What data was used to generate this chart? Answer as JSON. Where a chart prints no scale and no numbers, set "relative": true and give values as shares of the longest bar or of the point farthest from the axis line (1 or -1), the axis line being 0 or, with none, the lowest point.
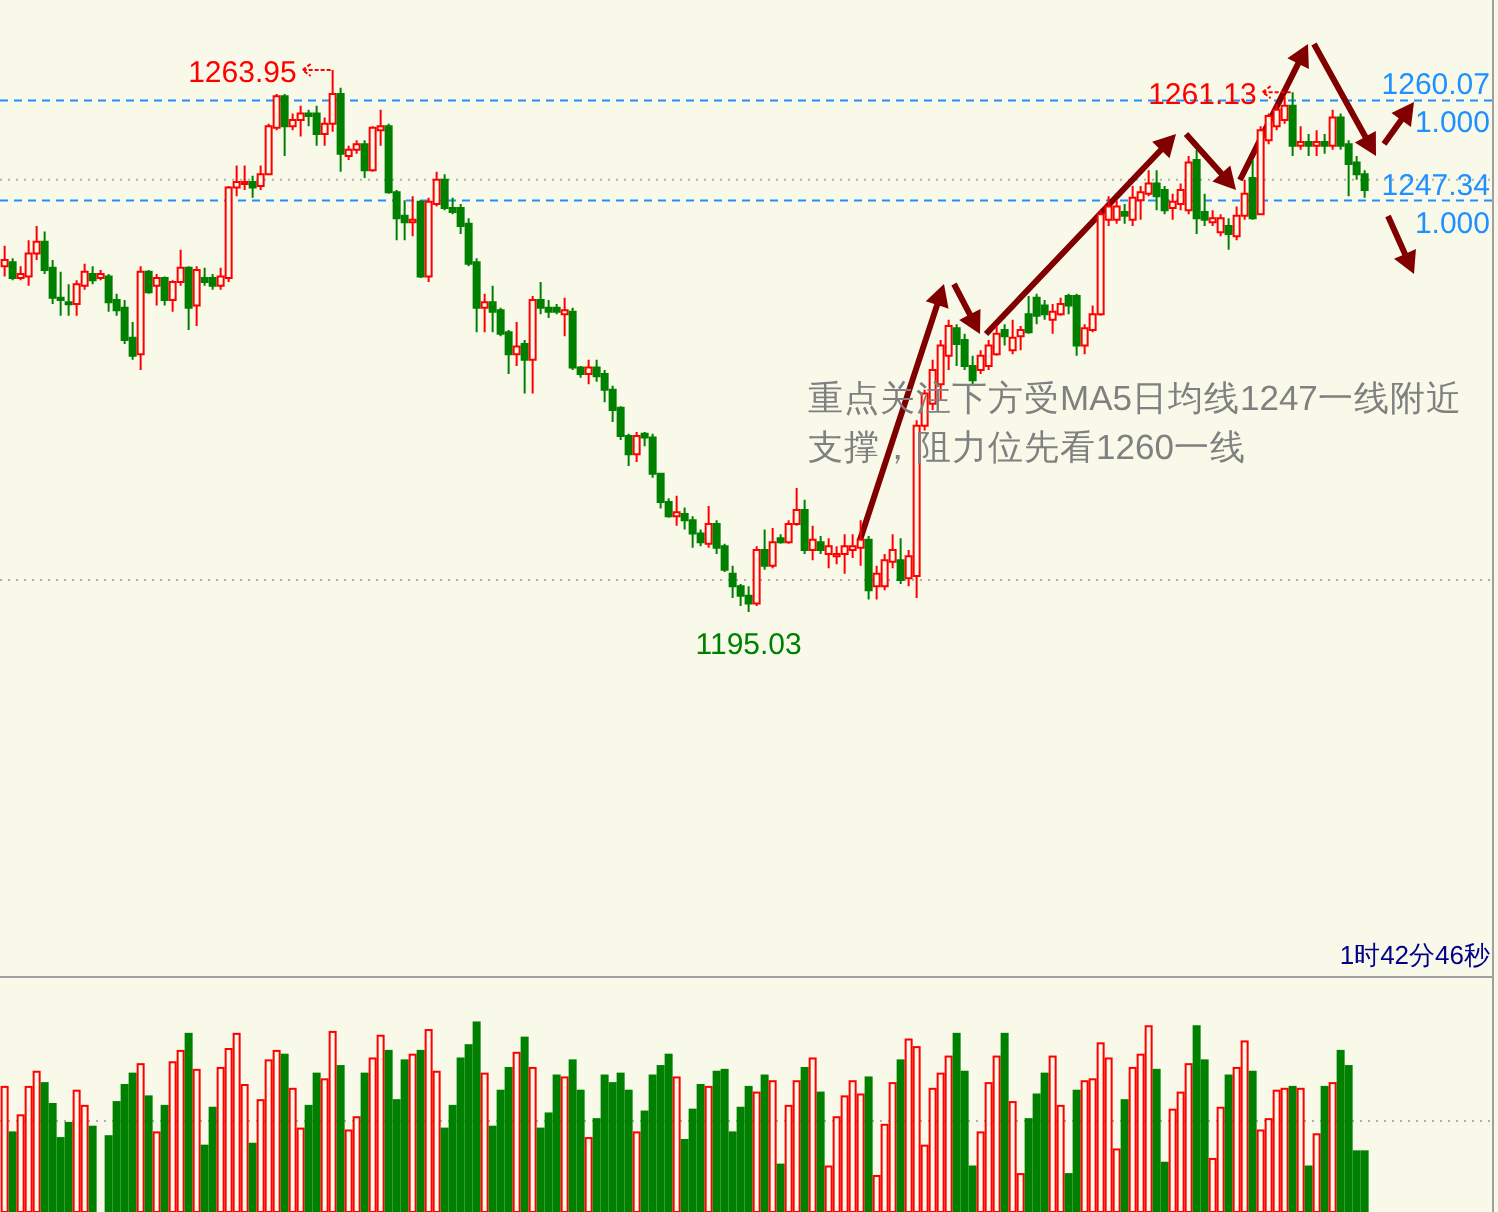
{
  "chart_data": [
    {
      "type": "candlestick",
      "categories": [
        null,
        null,
        null,
        null,
        null,
        null,
        null,
        null,
        null,
        null,
        null,
        null,
        null,
        null,
        null,
        null,
        null,
        null,
        null,
        null,
        null,
        null,
        null,
        null,
        null,
        null,
        null,
        null,
        null,
        null,
        null,
        null,
        null,
        null,
        null,
        null,
        null,
        null,
        null,
        null,
        null,
        null,
        null,
        null,
        null,
        null,
        null,
        null,
        null,
        null,
        null,
        null,
        null,
        null,
        null,
        null,
        null,
        null,
        null,
        null,
        null,
        null,
        null,
        null,
        null,
        null,
        null,
        null,
        null,
        null,
        null,
        null,
        null,
        null,
        null,
        null,
        null,
        null,
        null,
        null,
        null,
        null,
        null,
        null,
        null,
        null,
        null,
        null,
        null,
        null,
        null,
        null,
        null,
        null,
        null,
        null,
        null,
        null,
        null,
        null,
        null,
        null,
        null,
        null,
        null,
        null,
        null,
        null,
        null,
        null,
        null,
        null,
        null,
        null,
        null,
        null,
        null,
        null,
        null,
        null,
        null,
        null,
        null,
        null,
        null,
        null,
        null,
        null,
        null,
        null,
        null,
        null,
        null,
        null,
        null,
        null,
        null,
        null,
        null,
        null,
        null,
        null,
        null,
        null,
        null,
        null,
        null,
        null,
        null,
        null,
        null,
        null,
        null,
        null,
        null,
        null,
        null,
        null,
        null,
        null,
        null,
        null,
        null,
        null,
        null,
        null,
        null,
        null,
        null,
        null,
        null
      ],
      "ohlc": [
        [
          1239.0,
          1241.6,
          1237.7,
          1239.8
        ],
        [
          1239.5,
          1240.0,
          1237.2,
          1237.5
        ],
        [
          1237.5,
          1239.0,
          1237.2,
          1238.0
        ],
        [
          1237.7,
          1242.3,
          1236.5,
          1240.6
        ],
        [
          1240.6,
          1244.1,
          1239.8,
          1242.1
        ],
        [
          1242.1,
          1243.4,
          1238.0,
          1238.5
        ],
        [
          1238.8,
          1239.8,
          1234.2,
          1235.0
        ],
        [
          1235.0,
          1238.3,
          1232.7,
          1234.7
        ],
        [
          1234.4,
          1236.7,
          1232.7,
          1234.2
        ],
        [
          1234.2,
          1237.2,
          1232.7,
          1236.7
        ],
        [
          1236.5,
          1239.3,
          1236.0,
          1238.3
        ],
        [
          1238.0,
          1239.0,
          1236.7,
          1237.2
        ],
        [
          1237.5,
          1238.5,
          1237.2,
          1238.0
        ],
        [
          1237.7,
          1238.0,
          1233.2,
          1234.4
        ],
        [
          1234.7,
          1235.5,
          1232.7,
          1233.4
        ],
        [
          1233.7,
          1234.7,
          1229.1,
          1229.6
        ],
        [
          1229.9,
          1231.9,
          1227.1,
          1227.6
        ],
        [
          1227.8,
          1239.0,
          1225.8,
          1238.3
        ],
        [
          1238.3,
          1238.5,
          1235.5,
          1235.7
        ],
        [
          1236.5,
          1238.0,
          1234.0,
          1237.5
        ],
        [
          1237.5,
          1237.7,
          1234.0,
          1234.7
        ],
        [
          1234.7,
          1237.2,
          1233.2,
          1237.0
        ],
        [
          1237.0,
          1241.1,
          1236.5,
          1238.8
        ],
        [
          1238.8,
          1239.0,
          1230.9,
          1233.7
        ],
        [
          1234.0,
          1239.0,
          1231.4,
          1238.5
        ],
        [
          1237.5,
          1238.8,
          1236.5,
          1237.0
        ],
        [
          1237.5,
          1238.0,
          1236.0,
          1236.5
        ],
        [
          1236.5,
          1238.8,
          1236.0,
          1237.7
        ],
        [
          1237.5,
          1249.2,
          1237.0,
          1249.0
        ],
        [
          1249.0,
          1251.8,
          1247.9,
          1249.7
        ],
        [
          1249.5,
          1251.8,
          1248.7,
          1249.7
        ],
        [
          1249.7,
          1250.5,
          1247.7,
          1249.0
        ],
        [
          1249.2,
          1251.8,
          1248.7,
          1250.7
        ],
        [
          1250.7,
          1257.1,
          1250.7,
          1256.8
        ],
        [
          1256.6,
          1260.9,
          1256.3,
          1260.6
        ],
        [
          1260.6,
          1260.9,
          1253.0,
          1256.8
        ],
        [
          1256.8,
          1258.4,
          1256.3,
          1257.6
        ],
        [
          1257.6,
          1259.4,
          1255.5,
          1258.4
        ],
        [
          1258.4,
          1258.9,
          1256.8,
          1258.1
        ],
        [
          1258.4,
          1259.4,
          1254.3,
          1255.8
        ],
        [
          1255.8,
          1257.9,
          1254.3,
          1257.1
        ],
        [
          1257.1,
          1263.95,
          1256.1,
          1260.9
        ],
        [
          1260.9,
          1261.7,
          1251.0,
          1253.3
        ],
        [
          1253.0,
          1254.3,
          1252.5,
          1253.8
        ],
        [
          1253.8,
          1255.0,
          1253.3,
          1254.5
        ],
        [
          1254.5,
          1255.0,
          1250.2,
          1251.2
        ],
        [
          1251.2,
          1256.8,
          1251.0,
          1256.6
        ],
        [
          1256.3,
          1258.9,
          1254.3,
          1256.8
        ],
        [
          1256.8,
          1257.1,
          1248.2,
          1248.4
        ],
        [
          1248.4,
          1248.7,
          1242.3,
          1245.1
        ],
        [
          1245.4,
          1247.4,
          1242.3,
          1244.6
        ],
        [
          1244.6,
          1247.9,
          1242.8,
          1244.9
        ],
        [
          1247.2,
          1247.4,
          1237.5,
          1237.7
        ],
        [
          1237.7,
          1247.7,
          1237.0,
          1247.2
        ],
        [
          1246.9,
          1251.0,
          1246.6,
          1250.0
        ],
        [
          1250.0,
          1250.7,
          1246.1,
          1246.4
        ],
        [
          1246.4,
          1247.7,
          1245.6,
          1245.9
        ],
        [
          1246.4,
          1246.9,
          1243.1,
          1244.1
        ],
        [
          1244.4,
          1245.1,
          1239.0,
          1239.3
        ],
        [
          1239.5,
          1240.0,
          1230.6,
          1233.7
        ],
        [
          1233.7,
          1235.5,
          1230.6,
          1234.4
        ],
        [
          1234.4,
          1236.5,
          1230.6,
          1233.2
        ],
        [
          1233.4,
          1233.7,
          1230.1,
          1230.4
        ],
        [
          1230.6,
          1230.9,
          1225.3,
          1227.8
        ],
        [
          1227.8,
          1231.9,
          1226.3,
          1228.8
        ],
        [
          1229.1,
          1229.6,
          1222.8,
          1227.1
        ],
        [
          1227.1,
          1235.2,
          1222.8,
          1234.7
        ],
        [
          1234.7,
          1237.0,
          1232.9,
          1233.7
        ],
        [
          1233.7,
          1234.7,
          1232.4,
          1233.2
        ],
        [
          1233.7,
          1234.2,
          1232.9,
          1233.2
        ],
        [
          1232.9,
          1235.0,
          1230.1,
          1233.4
        ],
        [
          1233.2,
          1233.7,
          1225.8,
          1226.1
        ],
        [
          1226.1,
          1226.3,
          1224.8,
          1225.3
        ],
        [
          1225.3,
          1227.1,
          1224.0,
          1226.1
        ],
        [
          1226.1,
          1227.1,
          1224.3,
          1225.0
        ],
        [
          1225.3,
          1225.8,
          1221.7,
          1223.3
        ],
        [
          1223.3,
          1223.8,
          1219.2,
          1220.7
        ],
        [
          1221.0,
          1221.2,
          1216.9,
          1217.4
        ],
        [
          1217.4,
          1217.7,
          1213.6,
          1215.1
        ],
        [
          1215.1,
          1217.9,
          1214.1,
          1217.4
        ],
        [
          1217.7,
          1217.9,
          1216.1,
          1217.2
        ],
        [
          1217.2,
          1217.7,
          1212.1,
          1212.6
        ],
        [
          1212.6,
          1212.6,
          1208.2,
          1209.0
        ],
        [
          1209.0,
          1209.5,
          1207.0,
          1207.2
        ],
        [
          1207.2,
          1209.8,
          1206.0,
          1207.7
        ],
        [
          1207.5,
          1208.3,
          1205.5,
          1206.7
        ],
        [
          1206.7,
          1207.2,
          1203.2,
          1205.0
        ],
        [
          1205.0,
          1205.5,
          1203.4,
          1203.9
        ],
        [
          1203.7,
          1208.5,
          1203.2,
          1206.2
        ],
        [
          1206.2,
          1206.7,
          1202.4,
          1203.2
        ],
        [
          1203.4,
          1203.7,
          1200.1,
          1200.4
        ],
        [
          1199.9,
          1200.9,
          1196.8,
          1198.3
        ],
        [
          1198.3,
          1198.6,
          1195.8,
          1197.1
        ],
        [
          1197.1,
          1198.3,
          1195.03,
          1196.1
        ],
        [
          1196.1,
          1203.4,
          1195.8,
          1202.9
        ],
        [
          1202.9,
          1205.5,
          1200.4,
          1200.9
        ],
        [
          1200.9,
          1205.7,
          1200.6,
          1203.9
        ],
        [
          1204.4,
          1204.9,
          1203.7,
          1203.9
        ],
        [
          1203.9,
          1206.7,
          1203.7,
          1206.2
        ],
        [
          1206.2,
          1210.8,
          1206.0,
          1208.0
        ],
        [
          1208.0,
          1209.3,
          1202.4,
          1202.9
        ],
        [
          1202.9,
          1206.0,
          1201.6,
          1204.2
        ],
        [
          1203.9,
          1204.7,
          1202.4,
          1202.9
        ],
        [
          1202.4,
          1204.4,
          1200.6,
          1203.4
        ],
        [
          1202.1,
          1203.4,
          1201.1,
          1202.4
        ],
        [
          1202.4,
          1204.9,
          1199.9,
          1203.4
        ],
        [
          1202.9,
          1204.9,
          1201.9,
          1203.4
        ],
        [
          1203.2,
          1206.7,
          1200.9,
          1204.2
        ],
        [
          1204.2,
          1204.7,
          1196.6,
          1197.8
        ],
        [
          1198.3,
          1200.9,
          1196.6,
          1199.9
        ],
        [
          1198.3,
          1202.4,
          1197.8,
          1201.6
        ],
        [
          1201.4,
          1204.9,
          1200.6,
          1202.9
        ],
        [
          1201.6,
          1204.4,
          1198.6,
          1199.1
        ],
        [
          1199.3,
          1202.9,
          1198.3,
          1202.1
        ],
        [
          1199.6,
          1219.4,
          1196.8,
          1218.7
        ],
        [
          1218.7,
          1223.3,
          1218.1,
          1222.8
        ],
        [
          1221.5,
          1227.1,
          1220.7,
          1225.8
        ],
        [
          1224.0,
          1229.6,
          1222.0,
          1228.9
        ],
        [
          1227.6,
          1232.2,
          1225.8,
          1231.4
        ],
        [
          1231.1,
          1231.6,
          1226.3,
          1229.1
        ],
        [
          1229.6,
          1230.4,
          1225.8,
          1226.3
        ],
        [
          1226.3,
          1227.6,
          1224.0,
          1224.5
        ],
        [
          1225.8,
          1228.3,
          1225.3,
          1227.6
        ],
        [
          1226.3,
          1229.6,
          1225.8,
          1228.9
        ],
        [
          1227.8,
          1231.4,
          1227.6,
          1230.4
        ],
        [
          1230.9,
          1231.6,
          1228.9,
          1230.1
        ],
        [
          1228.3,
          1232.2,
          1227.8,
          1229.9
        ],
        [
          1230.1,
          1231.4,
          1228.3,
          1230.9
        ],
        [
          1232.9,
          1235.2,
          1230.4,
          1230.6
        ],
        [
          1235.0,
          1235.5,
          1231.6,
          1232.7
        ],
        [
          1234.0,
          1234.7,
          1232.2,
          1232.9
        ],
        [
          1232.2,
          1234.2,
          1230.4,
          1233.2
        ],
        [
          1232.9,
          1235.0,
          1232.7,
          1234.2
        ],
        [
          1235.2,
          1235.5,
          1232.9,
          1234.0
        ],
        [
          1235.2,
          1235.5,
          1227.6,
          1228.9
        ],
        [
          1228.9,
          1231.6,
          1227.8,
          1231.1
        ],
        [
          1230.9,
          1234.0,
          1230.6,
          1232.9
        ],
        [
          1232.9,
          1246.1,
          1232.7,
          1245.6
        ],
        [
          1244.9,
          1247.9,
          1244.1,
          1246.6
        ],
        [
          1244.9,
          1247.4,
          1244.4,
          1246.6
        ],
        [
          1245.9,
          1246.9,
          1244.4,
          1245.4
        ],
        [
          1244.9,
          1249.2,
          1244.1,
          1247.7
        ],
        [
          1247.4,
          1249.2,
          1244.9,
          1248.4
        ],
        [
          1248.2,
          1251.2,
          1247.9,
          1249.5
        ],
        [
          1249.5,
          1251.2,
          1246.1,
          1247.9
        ],
        [
          1248.7,
          1249.2,
          1245.6,
          1246.1
        ],
        [
          1246.4,
          1248.2,
          1244.9,
          1247.2
        ],
        [
          1246.9,
          1249.5,
          1246.1,
          1248.7
        ],
        [
          1246.1,
          1253.0,
          1245.6,
          1252.2
        ],
        [
          1252.5,
          1253.8,
          1243.1,
          1245.1
        ],
        [
          1245.9,
          1248.2,
          1244.1,
          1244.9
        ],
        [
          1244.6,
          1246.1,
          1244.1,
          1245.1
        ],
        [
          1243.3,
          1245.6,
          1242.8,
          1245.1
        ],
        [
          1244.1,
          1245.1,
          1241.1,
          1243.1
        ],
        [
          1242.8,
          1246.6,
          1242.3,
          1245.4
        ],
        [
          1245.4,
          1250.0,
          1244.9,
          1248.2
        ],
        [
          1250.2,
          1252.5,
          1244.9,
          1245.1
        ],
        [
          1245.6,
          1256.8,
          1245.6,
          1256.3
        ],
        [
          1255.0,
          1258.4,
          1254.5,
          1258.1
        ],
        [
          1256.8,
          1259.6,
          1256.3,
          1258.9
        ],
        [
          1257.6,
          1260.6,
          1257.1,
          1259.4
        ],
        [
          1259.4,
          1261.13,
          1253.0,
          1254.3
        ],
        [
          1254.3,
          1256.8,
          1253.8,
          1254.8
        ],
        [
          1254.8,
          1255.8,
          1253.0,
          1254.3
        ],
        [
          1254.3,
          1256.3,
          1253.0,
          1254.8
        ],
        [
          1254.8,
          1255.8,
          1253.3,
          1254.3
        ],
        [
          1254.3,
          1258.9,
          1253.8,
          1257.9
        ],
        [
          1257.9,
          1258.4,
          1253.8,
          1254.3
        ],
        [
          1254.5,
          1255.0,
          1247.9,
          1252.0
        ],
        [
          1252.2,
          1253.0,
          1250.0,
          1250.7
        ],
        [
          1250.7,
          1251.2,
          1247.7,
          1248.7
        ]
      ],
      "ref_lines": [
        {
          "axis": "y",
          "value": 1260.07,
          "label": "1260.07",
          "color": "#1e90ff",
          "line_style": "dashed"
        },
        {
          "axis": "y",
          "value": 1247.34,
          "label": "1247.34",
          "color": "#1e90ff",
          "line_style": "dashed"
        },
        {
          "axis": "y",
          "value": 1250.0,
          "color": "#b0b0b0",
          "line_style": "dotted"
        },
        {
          "axis": "y",
          "value": 1199.1,
          "color": "#b0b0b0",
          "line_style": "dotted"
        }
      ],
      "annotations": [
        "1263.95",
        "1261.13",
        "1195.03",
        "1.000",
        "1.000",
        "重点关注下方受MA5日均线1247一线附近支撑，阻力位先看1260一线",
        "1时42分46秒"
      ]
    },
    {
      "type": "bar",
      "relative": true,
      "categories": [
        null,
        null,
        null,
        null,
        null,
        null,
        null,
        null,
        null,
        null,
        null,
        null,
        null,
        null,
        null,
        null,
        null,
        null,
        null,
        null,
        null,
        null,
        null,
        null,
        null,
        null,
        null,
        null,
        null,
        null,
        null,
        null,
        null,
        null,
        null,
        null,
        null,
        null,
        null,
        null,
        null,
        null,
        null,
        null,
        null,
        null,
        null,
        null,
        null,
        null,
        null,
        null,
        null,
        null,
        null,
        null,
        null,
        null,
        null,
        null,
        null,
        null,
        null,
        null,
        null,
        null,
        null,
        null,
        null,
        null,
        null,
        null,
        null,
        null,
        null,
        null,
        null,
        null,
        null,
        null,
        null,
        null,
        null,
        null,
        null,
        null,
        null,
        null,
        null,
        null,
        null,
        null,
        null,
        null,
        null,
        null,
        null,
        null,
        null,
        null,
        null,
        null,
        null,
        null,
        null,
        null,
        null,
        null,
        null,
        null,
        null,
        null,
        null,
        null,
        null,
        null,
        null,
        null,
        null,
        null,
        null,
        null,
        null,
        null,
        null,
        null,
        null,
        null,
        null,
        null,
        null,
        null,
        null,
        null,
        null,
        null,
        null,
        null,
        null,
        null,
        null,
        null,
        null,
        null,
        null,
        null,
        null,
        null,
        null,
        null,
        null,
        null,
        null,
        null,
        null,
        null,
        null,
        null,
        null,
        null,
        null,
        null,
        null,
        null,
        null,
        null,
        null,
        null,
        null,
        null,
        null
      ],
      "values": [
        0.66,
        0.42,
        0.51,
        0.66,
        0.74,
        0.68,
        0.57,
        0.39,
        0.47,
        0.64,
        0.56,
        0.45,
        0,
        0.4,
        0.58,
        0.67,
        0.73,
        0.78,
        0.61,
        0.42,
        0.56,
        0.79,
        0.85,
        0.94,
        0.75,
        0.35,
        0.55,
        0.76,
        0.86,
        0.94,
        0.67,
        0.36,
        0.59,
        0.8,
        0.85,
        0.83,
        0.65,
        0.44,
        0.56,
        0.73,
        0.7,
        0.95,
        0.77,
        0.43,
        0.5,
        0.73,
        0.81,
        0.93,
        0.85,
        0.59,
        0.8,
        0.83,
        0.85,
        0.96,
        0.74,
        0.44,
        0.56,
        0.81,
        0.88,
        1,
        0.73,
        0.45,
        0.64,
        0.76,
        0.84,
        0.92,
        0.76,
        0.44,
        0.52,
        0.72,
        0.71,
        0.8,
        0.64,
        0.39,
        0.49,
        0.72,
        0.68,
        0.73,
        0.64,
        0.42,
        0.53,
        0.72,
        0.77,
        0.83,
        0.71,
        0.38,
        0.54,
        0.67,
        0.66,
        0.74,
        0.75,
        0.42,
        0.55,
        0.66,
        0.63,
        0.72,
        0.69,
        0.25,
        0.56,
        0.69,
        0.76,
        0.81,
        0.63,
        0.24,
        0.5,
        0.61,
        0.69,
        0.62,
        0.71,
        0.19,
        0.46,
        0.68,
        0.8,
        0.91,
        0.87,
        0.35,
        0.65,
        0.73,
        0.82,
        0.94,
        0.74,
        0.24,
        0.42,
        0.68,
        0.82,
        0.94,
        0.58,
        0.2,
        0.49,
        0.62,
        0.73,
        0.82,
        0.56,
        0.2,
        0.64,
        0.69,
        0.7,
        0.89,
        0.81,
        0.33,
        0.59,
        0.76,
        0.83,
        0.98,
        0.75,
        0.26,
        0.54,
        0.63,
        0.78,
        0.98,
        0.8,
        0.28,
        0.55,
        0.72,
        0.76,
        0.9,
        0.74,
        0.43,
        0.49,
        0.64,
        0.65,
        0.66,
        0.65,
        0.24,
        0.41,
        0.66,
        0.68,
        0.85,
        0.77,
        0.32,
        0.32
      ],
      "ref_lines": [
        {
          "axis": "y",
          "value": 0.48,
          "color": "#b0b0b0",
          "line_style": "dotted"
        }
      ]
    }
  ]
}
